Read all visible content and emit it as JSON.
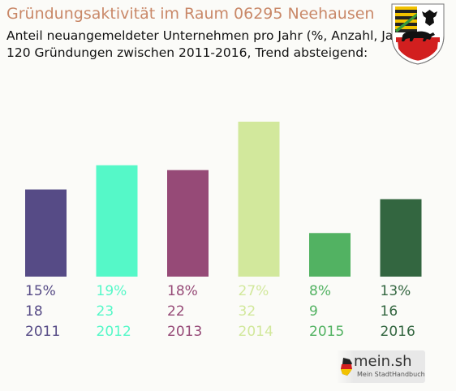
{
  "chart_data": {
    "type": "bar",
    "title": "Gründungsaktivität im Raum 06295 Neehausen",
    "subtitle_lines": [
      "Anteil neuangemeldeter Unternehmen pro Jahr (%, Anzahl, Jahr)",
      "120 Gründungen zwischen 2011-2016, Trend absteigend:"
    ],
    "categories": [
      "2011",
      "2012",
      "2013",
      "2014",
      "2015",
      "2016"
    ],
    "values": [
      18,
      23,
      22,
      32,
      9,
      16
    ],
    "percent_labels": [
      "15%",
      "19%",
      "18%",
      "27%",
      "8%",
      "13%"
    ],
    "colors": [
      "#564b86",
      "#55f8c8",
      "#964a77",
      "#d2e89c",
      "#52b262",
      "#336640"
    ],
    "ylim": [
      0,
      32
    ],
    "grid": false,
    "legend": "none"
  },
  "logo": {
    "brand": "mein.sh",
    "tagline": "Mein StadtHandbuch"
  }
}
